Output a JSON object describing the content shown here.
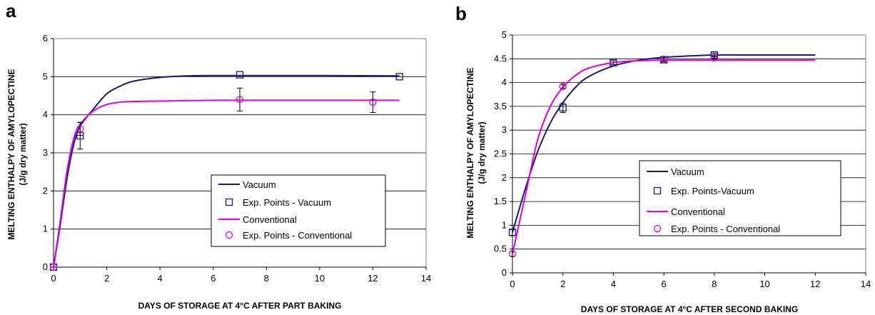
{
  "chart_data": [
    {
      "panel": "a",
      "type": "line",
      "xlabel": "DAYS OF STORAGE AT 4°C AFTER PART BAKING",
      "ylabel_line1": "MELTING ENTHALPY OF AMYLOPECTINE",
      "ylabel_line2": "(J/g dry matter)",
      "xlim": [
        0,
        14
      ],
      "ylim": [
        0,
        6
      ],
      "xticks": [
        0,
        2,
        4,
        6,
        8,
        10,
        12,
        14
      ],
      "yticks": [
        0,
        1,
        2,
        3,
        4,
        5,
        6
      ],
      "grid": "horizontal",
      "legend_position": "lower-right",
      "series": [
        {
          "name": "Vacuum",
          "kind": "curve",
          "color": "#1a1a6e",
          "x": [
            0,
            0.25,
            0.5,
            0.75,
            1,
            1.5,
            2,
            2.5,
            3,
            4,
            5,
            6,
            7,
            8,
            10,
            13
          ],
          "y": [
            0,
            1.1,
            2.3,
            3.2,
            3.7,
            4.15,
            4.55,
            4.75,
            4.88,
            4.98,
            5.02,
            5.03,
            5.03,
            5.03,
            5.03,
            5.02
          ]
        },
        {
          "name": "Exp. Points - Vacuum",
          "kind": "points",
          "marker": "square",
          "color": "#1a1a6e",
          "x": [
            0,
            1,
            7,
            13
          ],
          "y": [
            0,
            3.45,
            5.05,
            5.0
          ],
          "err": [
            0,
            0.35,
            0,
            0
          ]
        },
        {
          "name": "Conventional",
          "kind": "curve",
          "color": "#e000e0",
          "x": [
            0,
            0.25,
            0.5,
            0.75,
            1,
            1.5,
            2,
            2.5,
            3,
            4,
            5,
            6,
            7,
            8,
            10,
            13
          ],
          "y": [
            0,
            1.2,
            2.5,
            3.35,
            3.75,
            4.1,
            4.27,
            4.33,
            4.35,
            4.36,
            4.37,
            4.38,
            4.38,
            4.38,
            4.38,
            4.38
          ]
        },
        {
          "name": "Exp. Points - Conventional",
          "kind": "points",
          "marker": "circle",
          "color": "#e000e0",
          "x": [
            0,
            1,
            7,
            12
          ],
          "y": [
            0,
            3.63,
            4.4,
            4.33
          ],
          "err": [
            0,
            0.17,
            0.3,
            0.27
          ]
        }
      ]
    },
    {
      "panel": "b",
      "type": "line",
      "xlabel": "DAYS OF STORAGE AT 4°C AFTER SECOND BAKING",
      "ylabel_line1": "MELTING ENTHALPY OF AMYLOPECTINE",
      "ylabel_line2": "(J/g dry matter)",
      "xlim": [
        0,
        14
      ],
      "ylim": [
        0,
        5
      ],
      "xticks": [
        0,
        2,
        4,
        6,
        8,
        10,
        12,
        14
      ],
      "yticks": [
        0,
        0.5,
        1,
        1.5,
        2,
        2.5,
        3,
        3.5,
        4,
        4.5,
        5
      ],
      "grid": "horizontal",
      "legend_position": "lower-right",
      "series": [
        {
          "name": "Vacuum",
          "kind": "curve",
          "color": "#1a1a6e",
          "x": [
            0,
            0.5,
            1,
            1.5,
            2,
            2.5,
            3,
            4,
            5,
            6,
            7,
            8,
            9,
            10,
            12
          ],
          "y": [
            0.85,
            1.75,
            2.55,
            3.15,
            3.58,
            3.9,
            4.12,
            4.35,
            4.47,
            4.53,
            4.56,
            4.58,
            4.58,
            4.58,
            4.58
          ]
        },
        {
          "name": "Exp. Points-Vacuum",
          "kind": "points",
          "marker": "square",
          "color": "#1a1a6e",
          "x": [
            0,
            2,
            4,
            6,
            8
          ],
          "y": [
            0.85,
            3.47,
            4.42,
            4.48,
            4.58
          ],
          "err": [
            0.06,
            0.1,
            0.04,
            0.05,
            0.04
          ]
        },
        {
          "name": "Conventional",
          "kind": "curve",
          "color": "#e000e0",
          "x": [
            0,
            0.5,
            1,
            1.5,
            2,
            2.5,
            3,
            4,
            5,
            6,
            7,
            8,
            10,
            12
          ],
          "y": [
            0.4,
            1.6,
            2.8,
            3.5,
            3.9,
            4.15,
            4.3,
            4.42,
            4.46,
            4.47,
            4.47,
            4.47,
            4.47,
            4.47
          ]
        },
        {
          "name": "Exp. Points - Conventional",
          "kind": "points",
          "marker": "circle",
          "color": "#e000e0",
          "x": [
            0,
            2,
            6,
            8
          ],
          "y": [
            0.4,
            3.92,
            4.49,
            4.52
          ],
          "err": [
            0.05,
            0.04,
            0.04,
            0.03
          ]
        }
      ]
    }
  ]
}
